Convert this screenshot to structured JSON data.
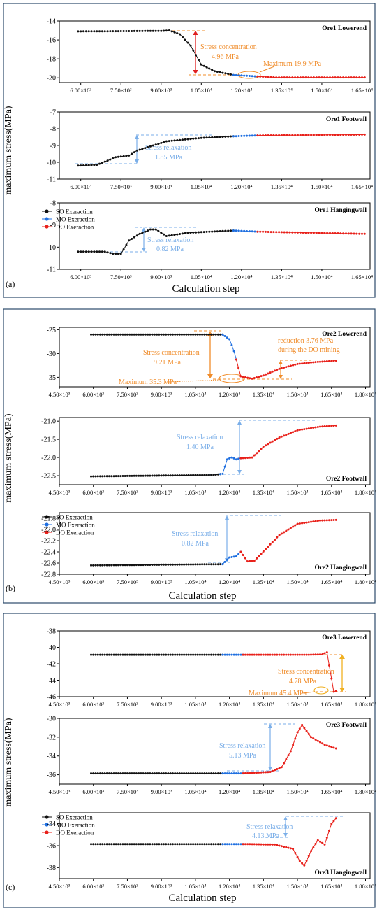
{
  "colors": {
    "so": "#111111",
    "mo": "#1f6fe0",
    "do": "#e8201a",
    "concentration": "#f08c2a",
    "relaxation": "#7aaee8",
    "arrow_red": "#e02020",
    "frame": "#2b4a6b"
  },
  "figure": {
    "panels": [
      {
        "label": "(a)",
        "xlabel": "Calculation step",
        "ylabel": "maximum stress(MPa)",
        "xticks": [
          "6.00×10³",
          "7.50×10³",
          "9.00×10³",
          "1.05×10⁴",
          "1.20×10⁴",
          "1.35×10⁴",
          "1.50×10⁴",
          "1.65×10⁴"
        ],
        "legend": [
          "SO Exeraction",
          "MO Exeraction",
          "DO Exeraction"
        ]
      },
      {
        "label": "(b)",
        "xlabel": "Calculation step",
        "ylabel": "maximum stress(MPa)",
        "xticks": [
          "4.50×10³",
          "6.00×10³",
          "7.50×10³",
          "9.00×10³",
          "1.05×10⁴",
          "1.20×10⁴",
          "1.35×10⁴",
          "1.50×10⁴",
          "1.65×10⁴",
          "1.80×10⁴"
        ],
        "legend": [
          "SO Exeraction",
          "MO Exeraction",
          "DO Exeraction"
        ]
      },
      {
        "label": "(c)",
        "xlabel": "Calculation step",
        "ylabel": "maximum stress(MPa)",
        "xticks": [
          "4.50×10³",
          "6.00×10³",
          "7.50×10³",
          "9.00×10³",
          "1.05×10⁴",
          "1.20×10⁴",
          "1.35×10⁴",
          "1.50×10⁴",
          "1.65×10⁴",
          "1.80×10⁴"
        ],
        "legend": [
          "SO Exeraction",
          "MO Exeraction",
          "DO Exeraction"
        ]
      }
    ]
  },
  "chart_data": [
    {
      "type": "line",
      "panel": 0,
      "title": "Ore1 Lowerend",
      "xlim": [
        5200,
        16800
      ],
      "ylim": [
        -20.5,
        -14
      ],
      "yticks": [
        -14,
        -16,
        -18,
        -20
      ],
      "tick_labels": [
        6000,
        7500,
        9000,
        10500,
        12000,
        13500,
        15000,
        16500
      ],
      "phase_ranges": {
        "SO": [
          5900,
          11700
        ],
        "MO": [
          11700,
          12600
        ],
        "DO": [
          12600,
          16600
        ]
      },
      "profile": [
        [
          5900,
          -15.1
        ],
        [
          9000,
          -15.05
        ],
        [
          9300,
          -15.0
        ],
        [
          9700,
          -15.4
        ],
        [
          10100,
          -16.6
        ],
        [
          10500,
          -18.6
        ],
        [
          11000,
          -19.3
        ],
        [
          11700,
          -19.7
        ],
        [
          12600,
          -19.85
        ],
        [
          13300,
          -19.95
        ],
        [
          16600,
          -19.95
        ]
      ],
      "annotations": [
        {
          "text": [
            "Stress concentration",
            "4.96 MPa"
          ],
          "value": 4.96,
          "role": "concentration"
        },
        {
          "text": [
            "Maximum 19.9 MPa"
          ],
          "value": 19.9,
          "role": "maximum"
        }
      ]
    },
    {
      "type": "line",
      "panel": 0,
      "title": "Ore1 Footwall",
      "xlim": [
        5200,
        16800
      ],
      "ylim": [
        -11,
        -7
      ],
      "yticks": [
        -7,
        -8,
        -9,
        -10,
        -11
      ],
      "tick_labels": [
        6000,
        7500,
        9000,
        10500,
        12000,
        13500,
        15000,
        16500
      ],
      "phase_ranges": {
        "SO": [
          5900,
          11700
        ],
        "MO": [
          11700,
          12600
        ],
        "DO": [
          12600,
          16600
        ]
      },
      "profile": [
        [
          5900,
          -10.2
        ],
        [
          6600,
          -10.15
        ],
        [
          7000,
          -9.9
        ],
        [
          7300,
          -9.7
        ],
        [
          7800,
          -9.6
        ],
        [
          8100,
          -9.3
        ],
        [
          8600,
          -9.05
        ],
        [
          9200,
          -8.75
        ],
        [
          10500,
          -8.55
        ],
        [
          11700,
          -8.45
        ],
        [
          12600,
          -8.4
        ],
        [
          16600,
          -8.35
        ]
      ],
      "annotations": [
        {
          "text": [
            "Stress relaxation",
            "1.85 MPa"
          ],
          "value": 1.85,
          "role": "relaxation"
        }
      ]
    },
    {
      "type": "line",
      "panel": 0,
      "title": "Ore1 Hangingwall",
      "xlim": [
        5200,
        16800
      ],
      "ylim": [
        -11,
        -8
      ],
      "yticks": [
        -8,
        -9,
        -10,
        -11
      ],
      "tick_labels": [
        6000,
        7500,
        9000,
        10500,
        12000,
        13500,
        15000,
        16500
      ],
      "phase_ranges": {
        "SO": [
          5900,
          11700
        ],
        "MO": [
          11700,
          12600
        ],
        "DO": [
          12600,
          16600
        ]
      },
      "profile": [
        [
          5900,
          -10.2
        ],
        [
          6900,
          -10.2
        ],
        [
          7200,
          -10.3
        ],
        [
          7500,
          -10.3
        ],
        [
          7800,
          -9.7
        ],
        [
          8200,
          -9.4
        ],
        [
          8600,
          -9.2
        ],
        [
          8800,
          -9.2
        ],
        [
          9200,
          -9.5
        ],
        [
          10000,
          -9.35
        ],
        [
          11700,
          -9.25
        ],
        [
          12600,
          -9.3
        ],
        [
          16600,
          -9.4
        ]
      ],
      "annotations": [
        {
          "text": [
            "Stress relaxation",
            "0.82 MPa"
          ],
          "value": 0.82,
          "role": "relaxation"
        }
      ]
    },
    {
      "type": "line",
      "panel": 1,
      "title": "Ore2 Lowerend",
      "xlim": [
        4500,
        18200
      ],
      "ylim": [
        -37,
        -24.5
      ],
      "yticks": [
        -25,
        -30,
        -35
      ],
      "tick_labels": [
        4500,
        6000,
        7500,
        9000,
        10500,
        12000,
        13500,
        15000,
        16500,
        18000
      ],
      "phase_ranges": {
        "SO": [
          5900,
          11700
        ],
        "MO": [
          11700,
          12300
        ],
        "DO": [
          12300,
          16700
        ]
      },
      "profile": [
        [
          5900,
          -26.0
        ],
        [
          11700,
          -26.0
        ],
        [
          12000,
          -27.0
        ],
        [
          12200,
          -29.5
        ],
        [
          12500,
          -34.8
        ],
        [
          13000,
          -35.3
        ],
        [
          13500,
          -34.6
        ],
        [
          14200,
          -33.2
        ],
        [
          15000,
          -32.2
        ],
        [
          15800,
          -31.8
        ],
        [
          16700,
          -31.5
        ]
      ],
      "annotations": [
        {
          "text": [
            "reduction 3.76 MPa",
            "during the DO mining"
          ],
          "value": 3.76,
          "role": "reduction"
        },
        {
          "text": [
            "Stress concentration",
            "9.21 MPa"
          ],
          "value": 9.21,
          "role": "concentration"
        },
        {
          "text": [
            "Maximum 35.3 MPa"
          ],
          "value": 35.3,
          "role": "maximum"
        }
      ]
    },
    {
      "type": "line",
      "panel": 1,
      "title": "Ore2 Footwall",
      "xlim": [
        4500,
        18200
      ],
      "ylim": [
        -22.75,
        -20.9
      ],
      "yticks": [
        -21.0,
        -21.5,
        -22.0,
        -22.5
      ],
      "tick_labels": [
        4500,
        6000,
        7500,
        9000,
        10500,
        12000,
        13500,
        15000,
        16500,
        18000
      ],
      "phase_ranges": {
        "SO": [
          5900,
          11600
        ],
        "MO": [
          11600,
          12500
        ],
        "DO": [
          12500,
          16700
        ]
      },
      "profile": [
        [
          5900,
          -22.52
        ],
        [
          11300,
          -22.48
        ],
        [
          11700,
          -22.45
        ],
        [
          11900,
          -22.05
        ],
        [
          12100,
          -22.0
        ],
        [
          12300,
          -22.05
        ],
        [
          12500,
          -22.02
        ],
        [
          13000,
          -22.0
        ],
        [
          13500,
          -21.7
        ],
        [
          14200,
          -21.45
        ],
        [
          15000,
          -21.25
        ],
        [
          16000,
          -21.15
        ],
        [
          16700,
          -21.12
        ]
      ],
      "annotations": [
        {
          "text": [
            "Stress relaxation",
            "1.40 MPa"
          ],
          "value": 1.4,
          "role": "relaxation"
        }
      ]
    },
    {
      "type": "line",
      "panel": 1,
      "title": "Ore2 Hangingwall",
      "xlim": [
        4500,
        18200
      ],
      "ylim": [
        -22.8,
        -21.7
      ],
      "yticks": [
        -21.8,
        -22.0,
        -22.2,
        -22.4,
        -22.6,
        -22.8
      ],
      "tick_labels": [
        4500,
        6000,
        7500,
        9000,
        10500,
        12000,
        13500,
        15000,
        16500,
        18000
      ],
      "phase_ranges": {
        "SO": [
          5900,
          11700
        ],
        "MO": [
          11700,
          12500
        ],
        "DO": [
          12500,
          16700
        ]
      },
      "profile": [
        [
          5900,
          -22.64
        ],
        [
          11700,
          -22.62
        ],
        [
          12000,
          -22.5
        ],
        [
          12300,
          -22.48
        ],
        [
          12500,
          -22.4
        ],
        [
          12800,
          -22.57
        ],
        [
          13100,
          -22.56
        ],
        [
          13600,
          -22.35
        ],
        [
          14200,
          -22.1
        ],
        [
          15000,
          -21.9
        ],
        [
          16000,
          -21.84
        ],
        [
          16700,
          -21.83
        ]
      ],
      "annotations": [
        {
          "text": [
            "Stress relaxation",
            "0.82 MPa"
          ],
          "value": 0.82,
          "role": "relaxation"
        }
      ]
    },
    {
      "type": "line",
      "panel": 2,
      "title": "Ore3 Lowerend",
      "xlim": [
        4500,
        18200
      ],
      "ylim": [
        -46,
        -38
      ],
      "yticks": [
        -38,
        -40,
        -42,
        -44,
        -46
      ],
      "tick_labels": [
        4500,
        6000,
        7500,
        9000,
        10500,
        12000,
        13500,
        15000,
        16500,
        18000
      ],
      "phase_ranges": {
        "SO": [
          5900,
          11700
        ],
        "MO": [
          11700,
          12600
        ],
        "DO": [
          12600,
          16700
        ]
      },
      "profile": [
        [
          5900,
          -40.9
        ],
        [
          12600,
          -40.9
        ],
        [
          15500,
          -40.9
        ],
        [
          16100,
          -40.85
        ],
        [
          16300,
          -40.6
        ],
        [
          16450,
          -43.0
        ],
        [
          16600,
          -45.4
        ],
        [
          16700,
          -45.3
        ]
      ],
      "annotations": [
        {
          "text": [
            "Stress concentration",
            "4.78 MPa"
          ],
          "value": 4.78,
          "role": "concentration"
        },
        {
          "text": [
            "Maximum 45.4 MPa"
          ],
          "value": 45.4,
          "role": "maximum"
        }
      ]
    },
    {
      "type": "line",
      "panel": 2,
      "title": "Ore3 Footwall",
      "xlim": [
        4500,
        18200
      ],
      "ylim": [
        -37,
        -30
      ],
      "yticks": [
        -30,
        -32,
        -34,
        -36
      ],
      "tick_labels": [
        4500,
        6000,
        7500,
        9000,
        10500,
        12000,
        13500,
        15000,
        16500,
        18000
      ],
      "phase_ranges": {
        "SO": [
          5900,
          11700
        ],
        "MO": [
          11700,
          12600
        ],
        "DO": [
          12600,
          16700
        ]
      },
      "profile": [
        [
          5900,
          -35.85
        ],
        [
          12600,
          -35.85
        ],
        [
          13800,
          -35.7
        ],
        [
          14300,
          -35.2
        ],
        [
          14700,
          -33.5
        ],
        [
          15000,
          -31.5
        ],
        [
          15200,
          -30.7
        ],
        [
          15600,
          -32.0
        ],
        [
          16200,
          -32.8
        ],
        [
          16700,
          -33.2
        ]
      ],
      "annotations": [
        {
          "text": [
            "Stress relaxation",
            "5.13 MPa"
          ],
          "value": 5.13,
          "role": "relaxation"
        }
      ]
    },
    {
      "type": "line",
      "panel": 2,
      "title": "Ore3 Hangingwall",
      "xlim": [
        4500,
        18200
      ],
      "ylim": [
        -39,
        -33
      ],
      "yticks": [
        -34,
        -36,
        -38
      ],
      "tick_labels": [
        4500,
        6000,
        7500,
        9000,
        10500,
        12000,
        13500,
        15000,
        16500,
        18000
      ],
      "phase_ranges": {
        "SO": [
          5900,
          11700
        ],
        "MO": [
          11700,
          12600
        ],
        "DO": [
          12600,
          16700
        ]
      },
      "profile": [
        [
          5900,
          -35.85
        ],
        [
          12600,
          -35.85
        ],
        [
          14000,
          -35.9
        ],
        [
          14800,
          -36.3
        ],
        [
          15100,
          -37.4
        ],
        [
          15300,
          -37.8
        ],
        [
          15600,
          -36.5
        ],
        [
          15900,
          -35.5
        ],
        [
          16200,
          -35.9
        ],
        [
          16500,
          -34.0
        ],
        [
          16700,
          -33.5
        ]
      ],
      "annotations": [
        {
          "text": [
            "Stress relaxation",
            "4.13 MPa"
          ],
          "value": 4.13,
          "role": "relaxation"
        }
      ]
    }
  ]
}
